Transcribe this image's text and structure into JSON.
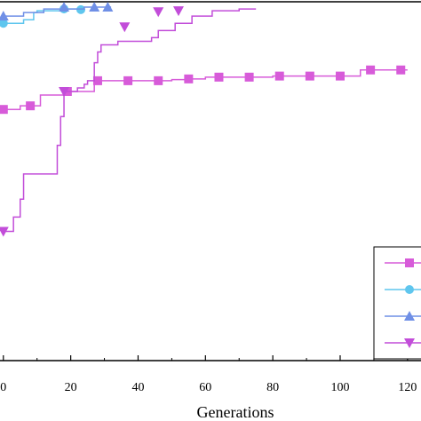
{
  "chart_data": {
    "type": "line",
    "xlabel": "Generations",
    "ylabel": "",
    "xlim": [
      -1,
      124
    ],
    "ylim": [
      0,
      100
    ],
    "x_ticks": [
      0,
      20,
      40,
      60,
      80,
      100,
      120
    ],
    "x_tick_labels": [
      "0",
      "20",
      "40",
      "60",
      "80",
      "100",
      "120"
    ],
    "grid": false,
    "legend_position": "bottom-right",
    "series": [
      {
        "color": "#d75bd9",
        "marker": "square",
        "step": true,
        "points": [
          [
            0,
            70
          ],
          [
            2,
            70
          ],
          [
            5,
            71
          ],
          [
            8,
            71
          ],
          [
            11,
            74
          ],
          [
            14,
            74
          ],
          [
            17,
            74
          ],
          [
            19,
            75
          ],
          [
            23,
            75
          ],
          [
            26,
            75
          ],
          [
            27,
            78
          ],
          [
            30,
            78
          ],
          [
            46,
            78
          ],
          [
            50,
            78.3
          ],
          [
            54,
            78.5
          ],
          [
            56,
            78.5
          ],
          [
            60,
            79
          ],
          [
            64,
            79
          ],
          [
            70,
            79
          ],
          [
            75,
            79
          ],
          [
            80,
            79.3
          ],
          [
            85,
            79.3
          ],
          [
            90,
            79.3
          ],
          [
            100,
            79.3
          ],
          [
            103,
            79.3
          ],
          [
            106,
            81
          ],
          [
            109,
            81
          ],
          [
            117,
            81
          ],
          [
            120,
            81
          ]
        ],
        "markers": [
          [
            0,
            70
          ],
          [
            8,
            71
          ],
          [
            19,
            75
          ],
          [
            28,
            78
          ],
          [
            37,
            78
          ],
          [
            46,
            78
          ],
          [
            55,
            78.5
          ],
          [
            64,
            79
          ],
          [
            73,
            79
          ],
          [
            82,
            79.3
          ],
          [
            91,
            79.3
          ],
          [
            100,
            79.3
          ],
          [
            109,
            81
          ],
          [
            118,
            81
          ]
        ]
      },
      {
        "color": "#5fc6ee",
        "marker": "circle",
        "step": true,
        "points": [
          [
            0,
            94
          ],
          [
            4,
            94
          ],
          [
            6,
            95
          ],
          [
            8,
            95
          ],
          [
            9,
            97
          ],
          [
            10,
            97.5
          ],
          [
            14,
            97.5
          ],
          [
            18,
            98
          ],
          [
            20,
            98
          ],
          [
            22,
            97.8
          ],
          [
            24,
            97.8
          ]
        ],
        "markers": [
          [
            0,
            94
          ],
          [
            18,
            98
          ],
          [
            23,
            97.8
          ]
        ]
      },
      {
        "color": "#6f8fe6",
        "marker": "triangle-up",
        "step": true,
        "points": [
          [
            0,
            96
          ],
          [
            4,
            96
          ],
          [
            6,
            97
          ],
          [
            10,
            97
          ],
          [
            12,
            98
          ],
          [
            20,
            98
          ],
          [
            24,
            98.5
          ],
          [
            32,
            98.5
          ]
        ],
        "markers": [
          [
            0,
            96
          ],
          [
            18,
            98.5
          ],
          [
            27,
            98.5
          ],
          [
            31,
            98.5
          ]
        ]
      },
      {
        "color": "#c24dd9",
        "marker": "triangle-down",
        "step": true,
        "points": [
          [
            0,
            36
          ],
          [
            3,
            40
          ],
          [
            5,
            45
          ],
          [
            6,
            52
          ],
          [
            12,
            52
          ],
          [
            15,
            52
          ],
          [
            16,
            60
          ],
          [
            17,
            68
          ],
          [
            18,
            75
          ],
          [
            20,
            75
          ],
          [
            22,
            76
          ],
          [
            24,
            77
          ],
          [
            25,
            78
          ],
          [
            27,
            83
          ],
          [
            28,
            86
          ],
          [
            29,
            88
          ],
          [
            32,
            88
          ],
          [
            34,
            89
          ],
          [
            40,
            89
          ],
          [
            44,
            90
          ],
          [
            46,
            92
          ],
          [
            50,
            92
          ],
          [
            51,
            94
          ],
          [
            55,
            94
          ],
          [
            56,
            96
          ],
          [
            60,
            96
          ],
          [
            62,
            97.5
          ],
          [
            66,
            97.5
          ],
          [
            70,
            98
          ],
          [
            75,
            98
          ]
        ],
        "markers": [
          [
            0,
            36
          ],
          [
            18,
            75
          ],
          [
            36,
            93
          ],
          [
            46,
            97.2
          ],
          [
            52,
            97.5
          ]
        ]
      }
    ]
  }
}
